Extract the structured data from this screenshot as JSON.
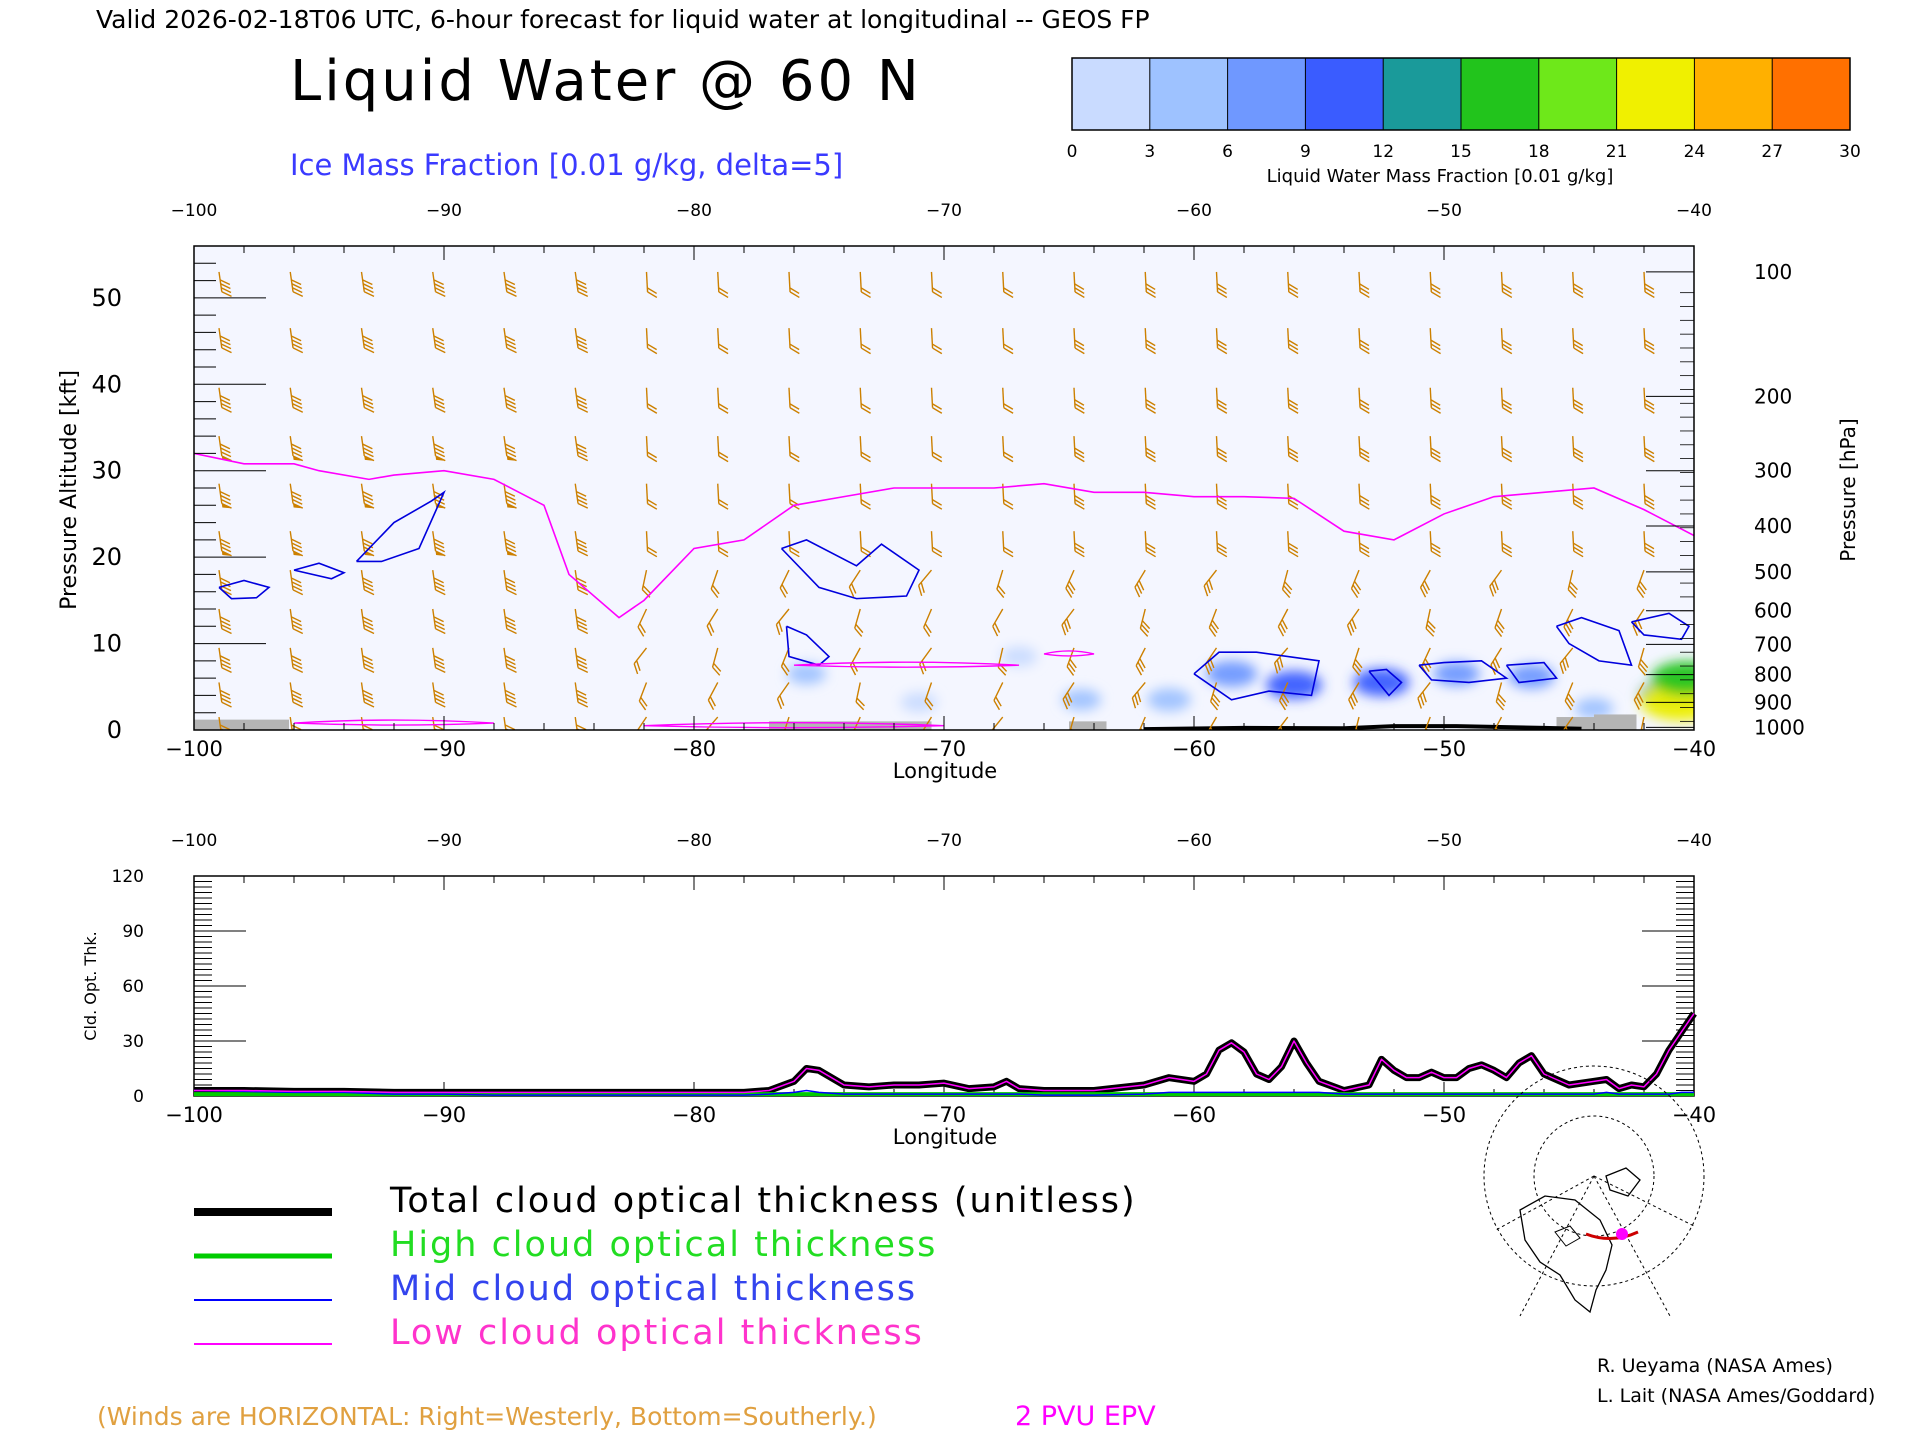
{
  "header": {
    "valid_line": "Valid 2026-02-18T06 UTC, 6-hour forecast for liquid water at longitudinal -- GEOS FP",
    "title": "Liquid Water @ 60 N",
    "ice_label": "Ice Mass Fraction [0.01 g/kg, delta=5]"
  },
  "colorbar": {
    "ticks": [
      "0",
      "3",
      "6",
      "9",
      "12",
      "15",
      "18",
      "21",
      "24",
      "27",
      "30"
    ],
    "label": "Liquid Water Mass Fraction [0.01 g/kg]",
    "colors": [
      "#f4f6ff",
      "#c9dbff",
      "#9ec2ff",
      "#6f98ff",
      "#3a5cff",
      "#1a9a9a",
      "#22c41c",
      "#6ee81a",
      "#f0f000",
      "#ffb000",
      "#ff7000",
      "#ff3000"
    ]
  },
  "colors": {
    "wind_barb": "#cc8000",
    "epv": "#ff00ff",
    "ice_contour": "#0000dd",
    "total": "#000000",
    "high": "#00cc00",
    "mid": "#0000ff",
    "low": "#ff00ff",
    "terrain": "#b4b4b4",
    "axis": "#000000"
  },
  "chart_data": [
    {
      "type": "heatmap",
      "title": "Liquid Water @ 60 N",
      "xlabel": "Longitude",
      "ylabel_left": "Pressure Altitude [kft]",
      "ylabel_right": "Pressure [hPa]",
      "xlim": [
        -100,
        -40
      ],
      "ylim": [
        0,
        56
      ],
      "x_ticks": [
        "-100",
        "-90",
        "-80",
        "-70",
        "-60",
        "-50",
        "-40"
      ],
      "x_ticks_top": [
        "-100",
        "-90",
        "-80",
        "-70",
        "-60",
        "-50",
        "-40"
      ],
      "y_ticks": [
        "0",
        "10",
        "20",
        "30",
        "40",
        "50"
      ],
      "pressure_ticks": [
        {
          "label": "100",
          "kft": 53.0
        },
        {
          "label": "200",
          "kft": 38.6
        },
        {
          "label": "300",
          "kft": 30.0
        },
        {
          "label": "400",
          "kft": 23.6
        },
        {
          "label": "500",
          "kft": 18.3
        },
        {
          "label": "600",
          "kft": 13.8
        },
        {
          "label": "700",
          "kft": 9.9
        },
        {
          "label": "800",
          "kft": 6.4
        },
        {
          "label": "900",
          "kft": 3.2
        },
        {
          "label": "1000",
          "kft": 0.3
        }
      ],
      "liquid_water_patches": [
        {
          "lon": -75.5,
          "kft": 6.5,
          "value": 3
        },
        {
          "lon": -71,
          "kft": 3.2,
          "value": 2
        },
        {
          "lon": -67,
          "kft": 8.5,
          "value": 2
        },
        {
          "lon": -64.5,
          "kft": 3.5,
          "value": 3
        },
        {
          "lon": -61,
          "kft": 3.5,
          "value": 5
        },
        {
          "lon": -58.5,
          "kft": 6.5,
          "value": 8
        },
        {
          "lon": -56,
          "kft": 5.2,
          "value": 10
        },
        {
          "lon": -52.5,
          "kft": 5.5,
          "value": 10
        },
        {
          "lon": -49.5,
          "kft": 6.5,
          "value": 6
        },
        {
          "lon": -46.5,
          "kft": 6.2,
          "value": 6
        },
        {
          "lon": -44,
          "kft": 2.5,
          "value": 3
        },
        {
          "lon": -41,
          "kft": 4.0,
          "value": 12
        },
        {
          "lon": -40.5,
          "kft": 3.3,
          "value": 21
        },
        {
          "lon": -40.3,
          "kft": 6.0,
          "value": 16
        }
      ],
      "epv_2pvu": {
        "lon": [
          -100,
          -98,
          -96,
          -95,
          -93,
          -92,
          -90,
          -88,
          -86,
          -85,
          -83,
          -82,
          -80,
          -78,
          -76,
          -74,
          -72,
          -70,
          -68,
          -66,
          -64,
          -62,
          -60,
          -58,
          -56,
          -54,
          -52,
          -50,
          -48,
          -46,
          -44,
          -42,
          -40
        ],
        "kft": [
          32,
          30.8,
          30.8,
          30,
          29,
          29.5,
          30,
          29,
          26,
          18,
          13,
          15,
          21,
          22,
          26,
          27,
          28,
          28,
          28,
          28.5,
          27.5,
          27.5,
          27,
          27,
          26.8,
          23,
          22,
          25,
          27,
          27.5,
          28,
          25.5,
          22.5
        ]
      },
      "ice_contours": [
        {
          "lon": [
            -99,
            -98,
            -97,
            -97.5,
            -98.5,
            -99
          ],
          "kft": [
            16.5,
            17.3,
            16.5,
            15.3,
            15.2,
            16.5
          ]
        },
        {
          "lon": [
            -96,
            -95,
            -94,
            -94.5,
            -96
          ],
          "kft": [
            18.5,
            19.3,
            18.2,
            17.5,
            18.5
          ]
        },
        {
          "lon": [
            -93.5,
            -92,
            -90.5,
            -90,
            -91,
            -92.5,
            -93.5,
            -93.5
          ],
          "kft": [
            19.5,
            24,
            26.5,
            27.5,
            21,
            19.5,
            19.5,
            19.5
          ]
        },
        {
          "lon": [
            -76.5,
            -75.5,
            -73.5,
            -72.5,
            -71,
            -71.5,
            -73.5,
            -75,
            -76.5
          ],
          "kft": [
            21,
            22,
            19,
            21.5,
            18.5,
            15.5,
            15.2,
            16.5,
            21
          ]
        },
        {
          "lon": [
            -76.3,
            -75.5,
            -74.6,
            -75,
            -76.2,
            -76.3
          ],
          "kft": [
            12,
            11,
            8.5,
            7.5,
            8.5,
            12
          ]
        },
        {
          "lon": [
            -60,
            -59,
            -57.5,
            -55,
            -55.3,
            -57,
            -58.5,
            -60
          ],
          "kft": [
            6.5,
            9,
            9,
            8,
            4,
            4.5,
            3.5,
            6.5
          ]
        },
        {
          "lon": [
            -53,
            -52.3,
            -51.7,
            -52.2,
            -53
          ],
          "kft": [
            6.8,
            7,
            5.5,
            4,
            6.8
          ]
        },
        {
          "lon": [
            -51,
            -50,
            -48.5,
            -47.5,
            -49,
            -50.5,
            -51
          ],
          "kft": [
            7.5,
            7.8,
            8,
            6,
            5.5,
            5.8,
            7.5
          ]
        },
        {
          "lon": [
            -47.5,
            -46,
            -45.5,
            -47,
            -47.5
          ],
          "kft": [
            7.5,
            7.8,
            6,
            5.5,
            7.5
          ]
        },
        {
          "lon": [
            -45.5,
            -44.5,
            -43,
            -42.5,
            -43.8,
            -45,
            -45.5
          ],
          "kft": [
            12,
            13,
            11.5,
            7.5,
            8,
            10,
            12
          ]
        },
        {
          "lon": [
            -42.5,
            -41,
            -40.2,
            -40.5,
            -42,
            -42.5
          ],
          "kft": [
            12.5,
            13.5,
            12,
            10.5,
            11,
            12.5
          ]
        }
      ],
      "terrain": [
        {
          "lon": [
            -100,
            -96.2
          ],
          "kft": 1.2
        },
        {
          "lon": [
            -77,
            -70.5
          ],
          "kft": 1.0
        },
        {
          "lon": [
            -65,
            -63.5
          ],
          "kft": 1.0
        },
        {
          "lon": [
            -45.5,
            -44
          ],
          "kft": 1.5
        },
        {
          "lon": [
            -44,
            -42.3
          ],
          "kft": 1.8
        }
      ]
    },
    {
      "type": "line",
      "ylabel": "Cld. Opt. Thk.",
      "xlabel": "Longitude",
      "xlim": [
        -100,
        -40
      ],
      "ylim": [
        0,
        120
      ],
      "x_ticks": [
        "-100",
        "-90",
        "-80",
        "-70",
        "-60",
        "-50",
        "-40"
      ],
      "x_ticks_top": [
        "-100",
        "-90",
        "-80",
        "-70",
        "-60",
        "-50",
        "-40"
      ],
      "y_ticks": [
        "0",
        "30",
        "60",
        "90",
        "120"
      ],
      "x": [
        -100,
        -98,
        -96,
        -94,
        -92,
        -90,
        -88,
        -86,
        -84,
        -82,
        -80,
        -78,
        -77,
        -76,
        -75.5,
        -75,
        -74,
        -73,
        -72,
        -71,
        -70,
        -69,
        -68,
        -67.5,
        -67,
        -66,
        -64,
        -62,
        -61,
        -60,
        -59.5,
        -59,
        -58.5,
        -58,
        -57.5,
        -57,
        -56.5,
        -56,
        -55.5,
        -55,
        -54,
        -53,
        -52.5,
        -52,
        -51.5,
        -51,
        -50.5,
        -50,
        -49.5,
        -49,
        -48.5,
        -48,
        -47.5,
        -47,
        -46.5,
        -46,
        -45,
        -44,
        -43.5,
        -43,
        -42.5,
        -42,
        -41.5,
        -41,
        -40.5,
        -40
      ],
      "series": [
        {
          "name": "Total cloud optical thickness (unitless)",
          "values": [
            3,
            3,
            2.5,
            2.5,
            2,
            2,
            2,
            2,
            2,
            2,
            2,
            2,
            3,
            8,
            15,
            14,
            6,
            5,
            6,
            6,
            7,
            4,
            5,
            8,
            4,
            3,
            3,
            6,
            10,
            8,
            12,
            25,
            29,
            24,
            12,
            9,
            16,
            30,
            18,
            8,
            3,
            6,
            20,
            14,
            10,
            10,
            13,
            10,
            10,
            15,
            17,
            14,
            10,
            18,
            22,
            12,
            6,
            8,
            9,
            4,
            6,
            5,
            12,
            25,
            35,
            45
          ]
        },
        {
          "name": "High cloud optical thickness",
          "values": [
            1,
            1,
            1,
            1,
            1,
            1,
            1,
            1,
            1,
            1,
            1,
            1,
            1,
            1,
            1,
            1,
            1,
            1,
            1,
            1,
            1,
            1,
            1,
            1,
            1,
            1,
            1,
            1,
            1,
            1,
            1,
            1,
            1,
            1,
            1,
            1,
            1,
            1,
            1,
            1,
            1,
            1,
            1,
            1,
            1,
            1,
            1,
            1,
            1,
            1,
            1,
            1,
            1,
            1,
            1,
            1,
            1,
            1,
            1,
            1,
            1,
            1,
            1,
            1,
            1,
            1
          ]
        },
        {
          "name": "Mid cloud optical thickness",
          "values": [
            3,
            2.5,
            2,
            2,
            1,
            1,
            0.5,
            0.5,
            0.5,
            0.5,
            0.5,
            0.5,
            1,
            2,
            3,
            2,
            1,
            1,
            1,
            1,
            1,
            1,
            1,
            1,
            1,
            0.5,
            0.5,
            1,
            2,
            2,
            2,
            2,
            2,
            2,
            2,
            2,
            2,
            2,
            2,
            2,
            1,
            1,
            1,
            1,
            1,
            1,
            1,
            1,
            1,
            1,
            1,
            1,
            1,
            1,
            1,
            1,
            1,
            1,
            2,
            1,
            1,
            1,
            1,
            1,
            2,
            2
          ]
        },
        {
          "name": "Low cloud optical thickness",
          "values": [
            3,
            3,
            2.5,
            2.5,
            2,
            2,
            2,
            2,
            2,
            2,
            2,
            2,
            3,
            8,
            15,
            14,
            6,
            5,
            6,
            6,
            7,
            4,
            5,
            8,
            4,
            3,
            3,
            6,
            10,
            8,
            12,
            25,
            29,
            24,
            12,
            9,
            16,
            30,
            18,
            8,
            3,
            6,
            20,
            14,
            10,
            10,
            13,
            10,
            10,
            15,
            17,
            14,
            10,
            18,
            22,
            12,
            6,
            8,
            9,
            4,
            6,
            5,
            12,
            25,
            35,
            45
          ]
        }
      ]
    }
  ],
  "legend": {
    "total": "Total cloud optical thickness (unitless)",
    "high": "High cloud optical thickness",
    "mid": "Mid cloud optical thickness",
    "low": "Low cloud optical thickness"
  },
  "footer": {
    "winds_note": "(Winds are HORIZONTAL: Right=Westerly, Bottom=Southerly.)",
    "epv_label": "2 PVU EPV",
    "credit1": "R. Ueyama (NASA Ames)",
    "credit2": "L. Lait (NASA Ames/Goddard)"
  }
}
